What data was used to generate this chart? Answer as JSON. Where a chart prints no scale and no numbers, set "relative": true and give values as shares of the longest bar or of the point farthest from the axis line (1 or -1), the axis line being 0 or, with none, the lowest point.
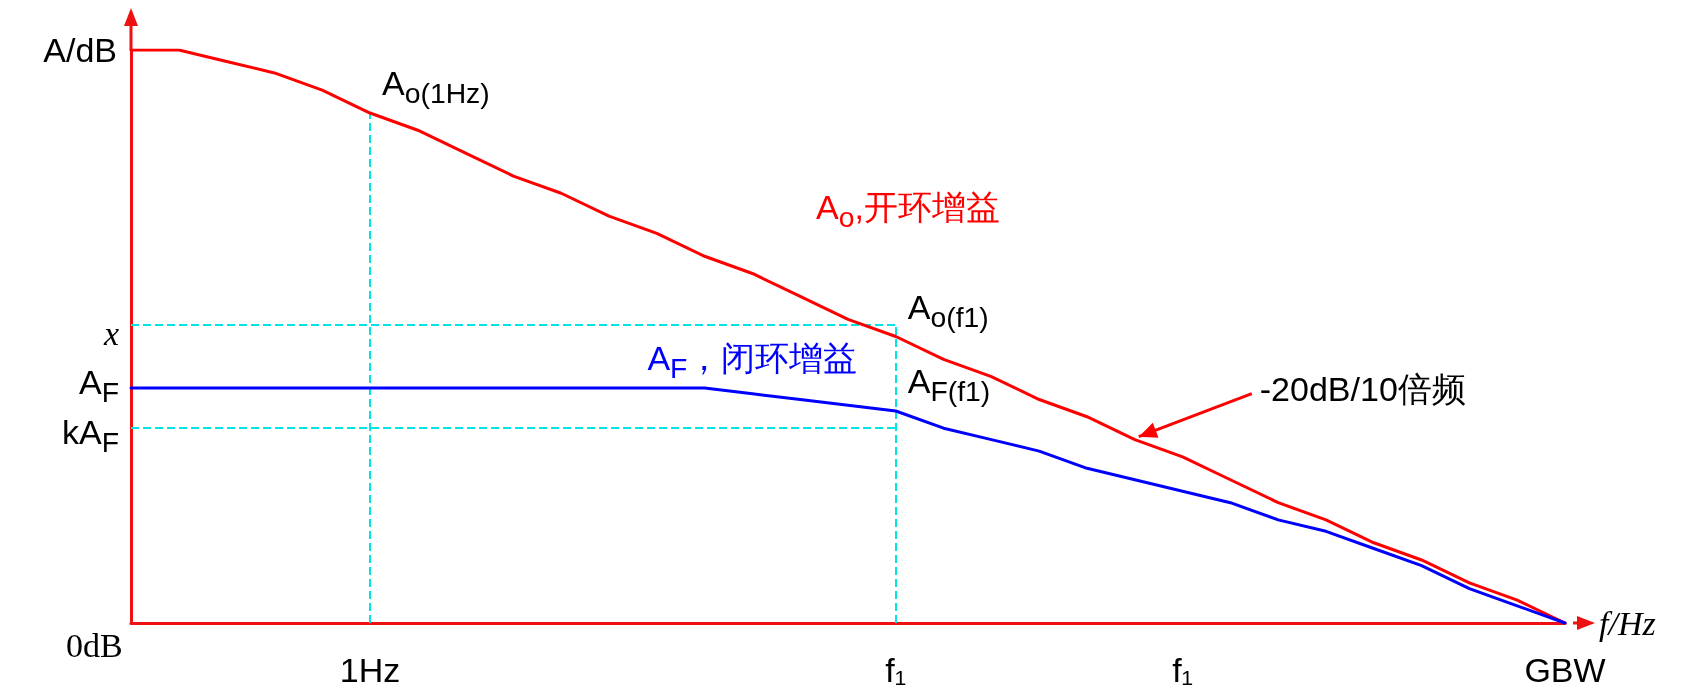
{
  "chart_data": {
    "type": "line",
    "relative": true,
    "xlabel": "f/Hz",
    "ylabel": "A/dB",
    "legend": false,
    "grid": false,
    "marker": "none",
    "line_style": "solid",
    "categories": [
      null,
      null,
      null,
      null,
      null,
      "1Hz",
      null,
      null,
      null,
      null,
      null,
      null,
      null,
      null,
      null,
      null,
      "f₁",
      null,
      null,
      null,
      null,
      null,
      "f₁",
      null,
      null,
      null,
      null,
      null,
      null,
      null,
      "GBW"
    ],
    "series": [
      {
        "name": "A$_{o}$,开环增益",
        "color": "#ff0000",
        "values": [
          1.0,
          1.0,
          0.98,
          0.96,
          0.93,
          0.89,
          0.86,
          0.82,
          0.78,
          0.75,
          0.71,
          0.68,
          0.64,
          0.61,
          0.57,
          0.53,
          0.5,
          0.46,
          0.43,
          0.39,
          0.36,
          0.32,
          0.29,
          0.25,
          0.21,
          0.18,
          0.14,
          0.11,
          0.07,
          0.04,
          0
        ]
      },
      {
        "name": "A$_{F}$，闭环增益",
        "color": "#0000ff",
        "values": [
          0.41,
          0.41,
          0.41,
          0.41,
          0.41,
          0.41,
          0.41,
          0.41,
          0.41,
          0.41,
          0.41,
          0.41,
          0.41,
          0.4,
          0.39,
          0.38,
          0.37,
          0.34,
          0.32,
          0.3,
          0.27,
          0.25,
          0.23,
          0.21,
          0.18,
          0.16,
          0.13,
          0.1,
          0.06,
          0.03,
          0
        ]
      }
    ],
    "ref_lines": [
      {
        "axis": "y",
        "value": 0.52,
        "label": "x",
        "color": "#00e5e5",
        "line_style": "dashed"
      },
      {
        "axis": "y",
        "value": 0.34,
        "label": "kA$_{F}$",
        "color": "#00e5e5",
        "line_style": "dashed"
      },
      {
        "axis": "x",
        "value": "1Hz",
        "label": null,
        "color": "#00e5e5",
        "line_style": "dashed"
      },
      {
        "axis": "x",
        "value": "f₁",
        "label": null,
        "color": "#00e5e5",
        "line_style": "dashed"
      }
    ],
    "annotations": [
      {
        "text": "A$_{o(1Hz)}$",
        "x": "1Hz",
        "y": 0.89
      },
      {
        "text": "A$_{o(f1)}$",
        "x": "f₁",
        "y": 0.5
      },
      {
        "text": "A$_{F(f1)}$",
        "x": "f₁",
        "y": 0.37
      },
      "0dB",
      "-20dB/10倍频",
      "A$_{F}$"
    ]
  }
}
